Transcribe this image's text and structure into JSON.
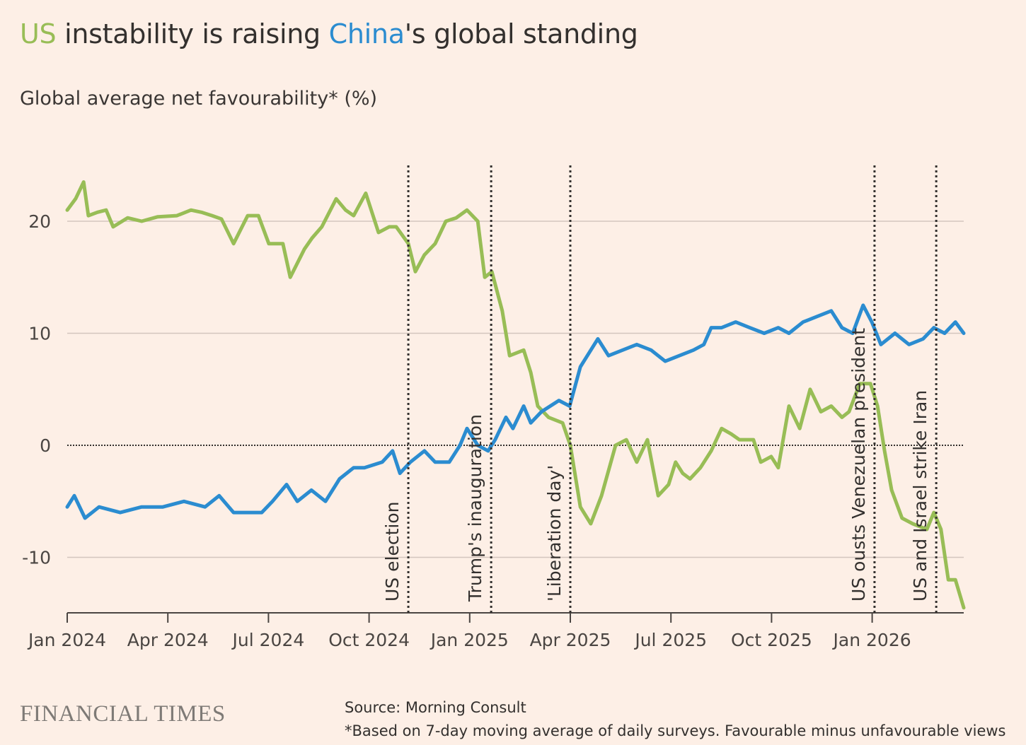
{
  "title": {
    "part1": "US",
    "part2": " instability is raising ",
    "part3": "China",
    "part4": "'s global standing"
  },
  "subtitle": "Global average net favourability* (%)",
  "footer": {
    "logo": "FINANCIAL TIMES",
    "source": "Source: Morning Consult",
    "note": "*Based on 7-day moving average of daily surveys. Favourable minus unfavourable views"
  },
  "colors": {
    "us": "#98bd56",
    "china": "#2b8cd0",
    "background": "#fdefe6",
    "grid": "#d4c6bd",
    "text": "#33302e"
  },
  "chart_data": {
    "type": "line",
    "title": "US instability is raising China's global standing",
    "ylabel": "Global average net favourability* (%)",
    "x_unit": "months since Jan 2024",
    "xlim": [
      0,
      26.73
    ],
    "ylim": [
      -14.8,
      24
    ],
    "yticks": [
      20,
      10,
      0,
      -10
    ],
    "ytick_labels": [
      "20",
      "10",
      "0",
      "-10"
    ],
    "xticks": [
      0,
      3,
      6,
      9,
      12,
      15,
      18,
      21,
      24
    ],
    "xtick_labels": [
      "Jan 2024",
      "Apr 2024",
      "Jul 2024",
      "Oct 2024",
      "Jan 2025",
      "Apr 2025",
      "Jul 2025",
      "Oct 2025",
      "Jan 2026"
    ],
    "grid": true,
    "events": [
      {
        "x": 10.17,
        "label": "US election"
      },
      {
        "x": 12.64,
        "label": "Trump's inauguration"
      },
      {
        "x": 15.0,
        "label": "'Liberation day'"
      },
      {
        "x": 24.07,
        "label": "US ousts Venezuelan president"
      },
      {
        "x": 25.91,
        "label": "US and Israel strike Iran"
      }
    ],
    "series": [
      {
        "name": "US",
        "color": "#98bd56",
        "x": [
          0,
          0.25,
          0.49,
          0.63,
          0.9,
          1.16,
          1.37,
          1.8,
          2.22,
          2.7,
          3.27,
          3.69,
          4.0,
          4.32,
          4.6,
          4.96,
          5.38,
          5.7,
          6.01,
          6.43,
          6.65,
          7.07,
          7.3,
          7.59,
          8.02,
          8.3,
          8.54,
          8.9,
          9.28,
          9.6,
          9.81,
          10.17,
          10.38,
          10.65,
          10.97,
          11.29,
          11.6,
          11.92,
          12.24,
          12.45,
          12.66,
          12.97,
          13.19,
          13.61,
          13.82,
          14.03,
          14.35,
          14.77,
          15.0,
          15.3,
          15.61,
          15.93,
          16.35,
          16.67,
          16.98,
          17.3,
          17.62,
          17.93,
          18.14,
          18.35,
          18.57,
          18.88,
          19.2,
          19.51,
          19.8,
          20.04,
          20.46,
          20.68,
          20.99,
          21.2,
          21.52,
          21.84,
          22.15,
          22.47,
          22.78,
          23.1,
          23.31,
          23.63,
          23.95,
          24.16,
          24.37,
          24.58,
          24.89,
          25.21,
          25.63,
          25.84,
          26.05,
          26.27,
          26.48,
          26.73
        ],
        "y": [
          21,
          22,
          23.5,
          20.5,
          20.8,
          21,
          19.5,
          20.3,
          20,
          20.4,
          20.5,
          21,
          20.8,
          20.5,
          20.2,
          18,
          20.5,
          20.5,
          18,
          18,
          15,
          17.5,
          18.5,
          19.5,
          22,
          21,
          20.5,
          22.5,
          19,
          19.5,
          19.5,
          18,
          15.5,
          17,
          18,
          20,
          20.3,
          21,
          20,
          15,
          15.5,
          12,
          8,
          8.5,
          6.5,
          3.5,
          2.5,
          2,
          0,
          -5.5,
          -7,
          -4.5,
          0,
          0.5,
          -1.5,
          0.5,
          -4.5,
          -3.5,
          -1.5,
          -2.5,
          -3,
          -2,
          -0.5,
          1.5,
          1,
          0.5,
          0.5,
          -1.5,
          -1,
          -2,
          3.5,
          1.5,
          5,
          3,
          3.5,
          2.5,
          3,
          5.5,
          5.5,
          3.5,
          -0.5,
          -4,
          -6.5,
          -7,
          -7.5,
          -6,
          -7.5,
          -12,
          -12,
          -14.5
        ]
      },
      {
        "name": "China",
        "color": "#2b8cd0",
        "x": [
          0,
          0.21,
          0.53,
          0.95,
          1.58,
          2.22,
          2.85,
          3.48,
          4.11,
          4.53,
          4.96,
          5.38,
          5.8,
          6.12,
          6.54,
          6.86,
          7.28,
          7.7,
          8.12,
          8.54,
          8.86,
          9.39,
          9.7,
          9.92,
          10.23,
          10.65,
          10.97,
          11.39,
          11.71,
          11.92,
          12.24,
          12.55,
          12.76,
          13.08,
          13.29,
          13.61,
          13.82,
          14.14,
          14.66,
          14.98,
          15.3,
          15.82,
          16.14,
          16.56,
          16.98,
          17.41,
          17.83,
          18.25,
          18.67,
          18.98,
          19.2,
          19.51,
          19.93,
          20.35,
          20.78,
          21.2,
          21.52,
          21.94,
          22.36,
          22.78,
          23.1,
          23.42,
          23.73,
          23.99,
          24.26,
          24.68,
          25.1,
          25.52,
          25.84,
          26.16,
          26.48,
          26.73
        ],
        "y": [
          -5.5,
          -4.5,
          -6.5,
          -5.5,
          -6,
          -5.5,
          -5.5,
          -5,
          -5.5,
          -4.5,
          -6,
          -6,
          -6,
          -5,
          -3.5,
          -5,
          -4,
          -5,
          -3,
          -2,
          -2,
          -1.5,
          -0.5,
          -2.5,
          -1.5,
          -0.5,
          -1.5,
          -1.5,
          0,
          1.5,
          0,
          -0.5,
          0.5,
          2.5,
          1.5,
          3.5,
          2,
          3,
          4,
          3.5,
          7,
          9.5,
          8,
          8.5,
          9,
          8.5,
          7.5,
          8,
          8.5,
          9,
          10.5,
          10.5,
          11,
          10.5,
          10,
          10.5,
          10,
          11,
          11.5,
          12,
          10.5,
          10,
          12.5,
          11,
          9,
          10,
          9,
          9.5,
          10.5,
          10,
          11,
          10
        ]
      }
    ]
  }
}
